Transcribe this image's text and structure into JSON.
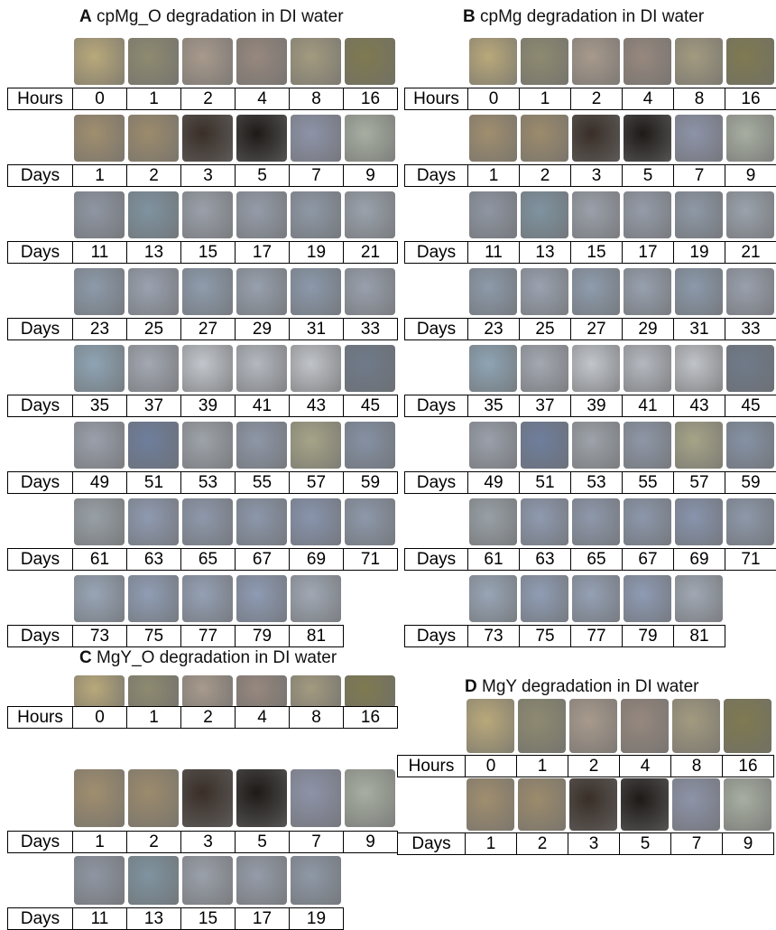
{
  "panels": [
    {
      "letter": "A",
      "title": "cpMg_O degradation in DI water",
      "rows": [
        {
          "unit": "Hours",
          "values": [
            0,
            1,
            2,
            4,
            8,
            16
          ]
        },
        {
          "unit": "Days",
          "values": [
            1,
            2,
            3,
            5,
            7,
            9
          ]
        },
        {
          "unit": "Days",
          "values": [
            11,
            13,
            15,
            17,
            19,
            21
          ]
        },
        {
          "unit": "Days",
          "values": [
            23,
            25,
            27,
            29,
            31,
            33
          ]
        },
        {
          "unit": "Days",
          "values": [
            35,
            37,
            39,
            41,
            43,
            45
          ]
        },
        {
          "unit": "Days",
          "values": [
            49,
            51,
            53,
            55,
            57,
            59
          ]
        },
        {
          "unit": "Days",
          "values": [
            61,
            63,
            65,
            67,
            69,
            71
          ]
        },
        {
          "unit": "Days",
          "values": [
            73,
            75,
            77,
            79,
            81
          ]
        }
      ]
    },
    {
      "letter": "B",
      "title": "cpMg degradation in DI water",
      "rows": [
        {
          "unit": "Hours",
          "values": [
            0,
            1,
            2,
            4,
            8,
            16
          ]
        },
        {
          "unit": "Days",
          "values": [
            1,
            2,
            3,
            5,
            7,
            9
          ]
        },
        {
          "unit": "Days",
          "values": [
            11,
            13,
            15,
            17,
            19,
            21
          ]
        },
        {
          "unit": "Days",
          "values": [
            23,
            25,
            27,
            29,
            31,
            33
          ]
        },
        {
          "unit": "Days",
          "values": [
            35,
            37,
            39,
            41,
            43,
            45
          ]
        },
        {
          "unit": "Days",
          "values": [
            49,
            51,
            53,
            55,
            57,
            59
          ]
        },
        {
          "unit": "Days",
          "values": [
            61,
            63,
            65,
            67,
            69,
            71
          ]
        },
        {
          "unit": "Days",
          "values": [
            73,
            75,
            77,
            79,
            81
          ]
        }
      ]
    },
    {
      "letter": "C",
      "title": "MgY_O degradation in DI water",
      "rows": [
        {
          "unit": "Hours",
          "values": [
            0,
            1,
            2,
            4,
            8,
            16
          ]
        },
        {
          "unit": "Days",
          "values": [
            1,
            2,
            3,
            5,
            7,
            9
          ]
        },
        {
          "unit": "Days",
          "values": [
            11,
            13,
            15,
            17,
            19
          ]
        }
      ]
    },
    {
      "letter": "D",
      "title": "MgY degradation in DI water",
      "rows": [
        {
          "unit": "Hours",
          "values": [
            0,
            1,
            2,
            4,
            8,
            16
          ]
        },
        {
          "unit": "Days",
          "values": [
            1,
            2,
            3,
            5,
            7,
            9
          ]
        }
      ]
    }
  ]
}
